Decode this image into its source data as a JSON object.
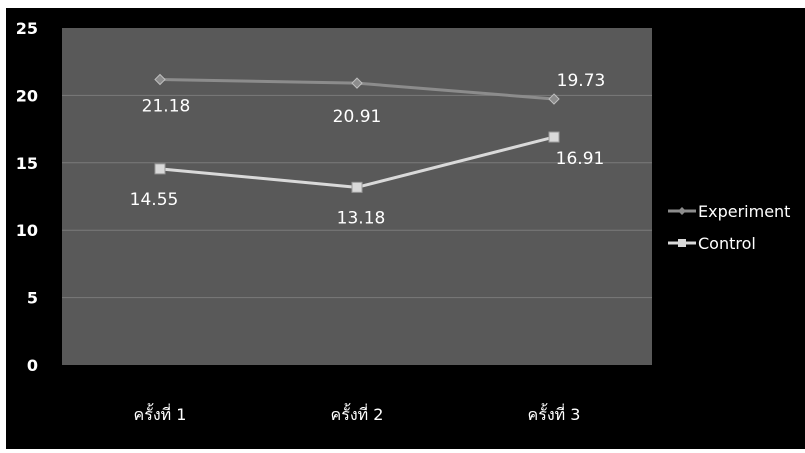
{
  "chart_data": {
    "type": "line",
    "categories": [
      "ครั้งที่ 1",
      "ครั้งที่ 2",
      "ครั้งที่ 3"
    ],
    "series": [
      {
        "name": "Experiment",
        "values": [
          21.18,
          20.91,
          19.73
        ],
        "labels": [
          "21.18",
          "20.91",
          "19.73"
        ],
        "marker": "diamond",
        "color": "#8c8c8c"
      },
      {
        "name": "Control",
        "values": [
          14.55,
          13.18,
          16.91
        ],
        "labels": [
          "14.55",
          "13.18",
          "16.91"
        ],
        "marker": "square",
        "color": "#d9d9d9"
      }
    ],
    "ylim": [
      0,
      25
    ],
    "yticks": [
      0,
      5,
      10,
      15,
      20,
      25
    ],
    "ytick_labels": [
      "0",
      "5",
      "10",
      "15",
      "20",
      "25"
    ],
    "grid": true,
    "legend_position": "right",
    "colors": {
      "background": "#000000",
      "plot_area": "#595959",
      "gridline": "#7a7a7a",
      "text": "#ffffff"
    }
  }
}
